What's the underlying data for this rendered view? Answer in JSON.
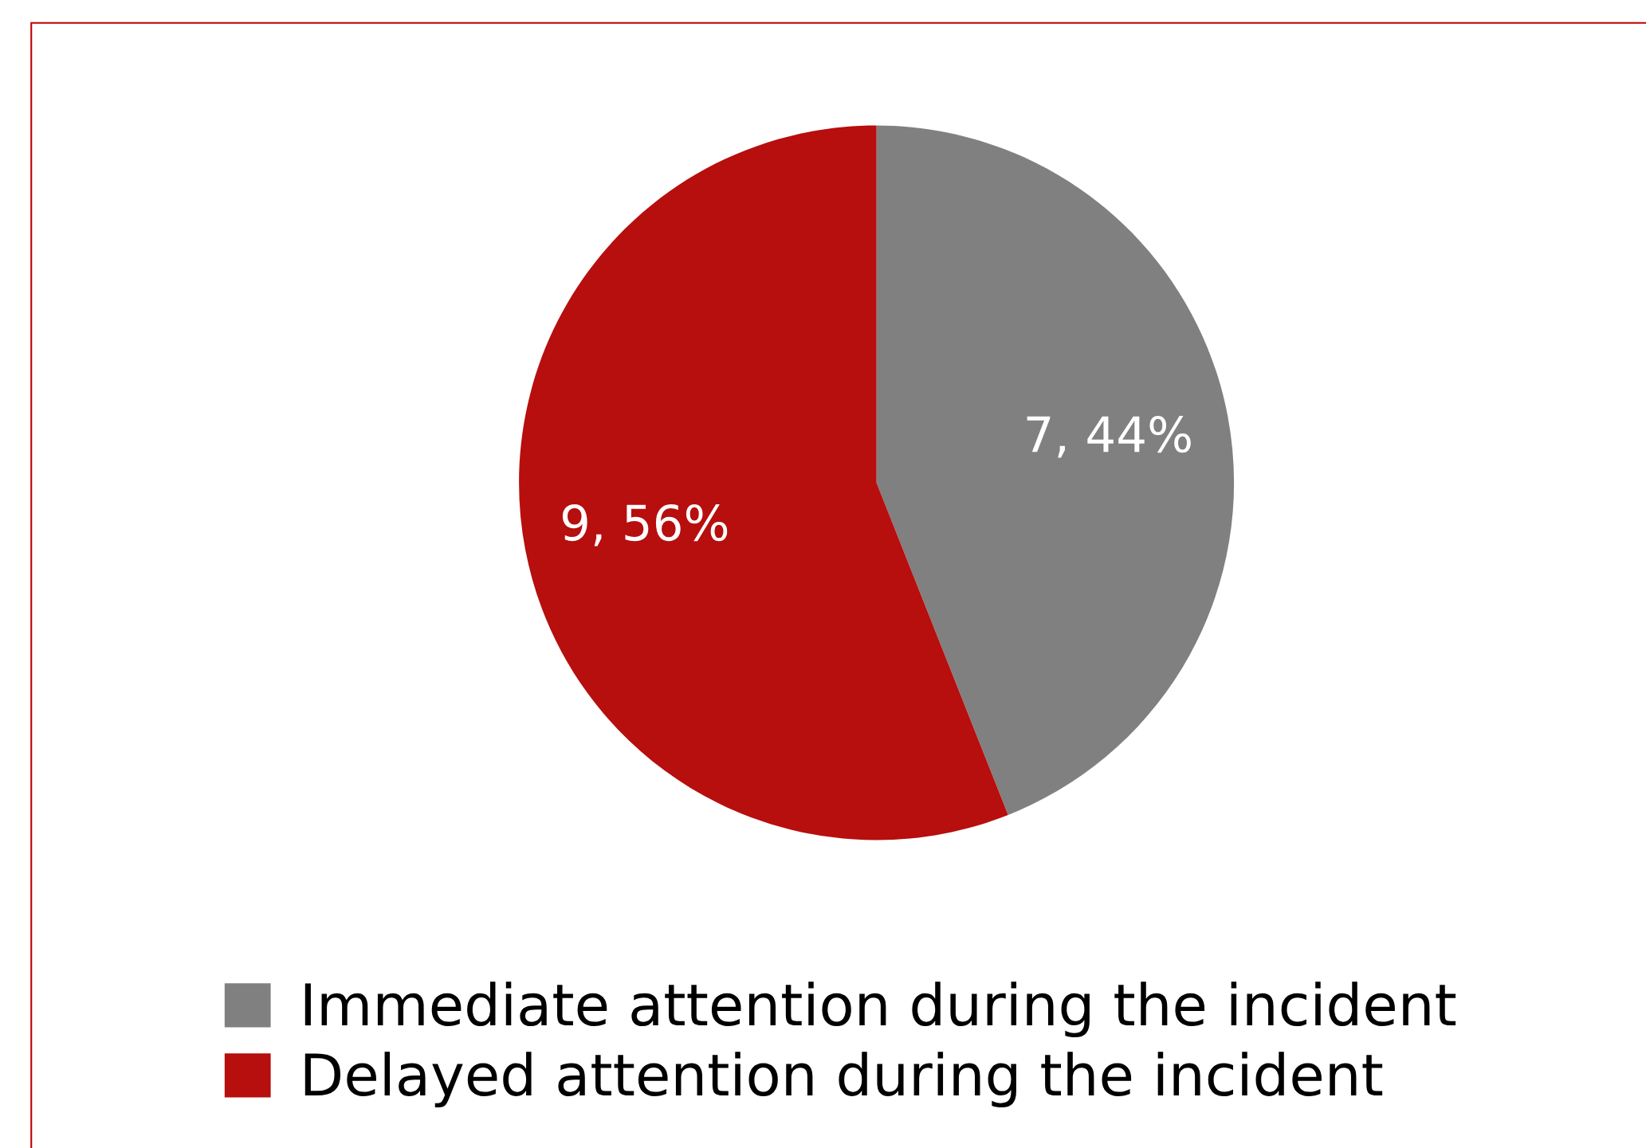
{
  "chart_data": {
    "type": "pie",
    "categories": [
      "Immediate attention during the incident",
      "Delayed attention during the incident"
    ],
    "values": [
      44,
      56
    ],
    "colors": [
      "#808080",
      "#b70e0e"
    ],
    "value_labels": [
      "7, 44%",
      "9, 56%"
    ],
    "legend": "bottom"
  }
}
